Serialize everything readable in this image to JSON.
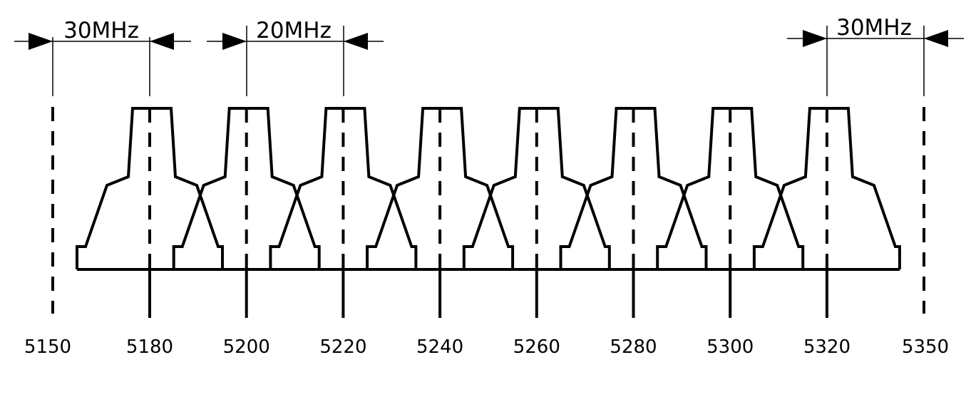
{
  "annotations": {
    "left_band_gap": "30MHz",
    "channel_spacing": "20MHz",
    "right_band_gap": "30MHz"
  },
  "band_edges": {
    "low": "5150",
    "high": "5350"
  },
  "channels": [
    {
      "center": "5180"
    },
    {
      "center": "5200"
    },
    {
      "center": "5220"
    },
    {
      "center": "5240"
    },
    {
      "center": "5260"
    },
    {
      "center": "5280"
    },
    {
      "center": "5300"
    },
    {
      "center": "5320"
    }
  ],
  "colors": {
    "line": "#000000",
    "background": "#ffffff"
  }
}
